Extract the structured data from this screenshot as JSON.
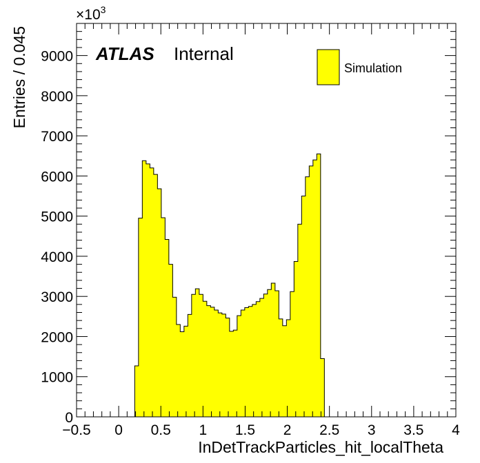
{
  "chart_data": {
    "type": "bar",
    "title": "",
    "xlabel": "InDetTrackParticles_hit_localTheta",
    "ylabel": "Entries / 0.045",
    "xlim": [
      -0.5,
      4.0
    ],
    "ylim": [
      0,
      9800
    ],
    "y_multiplier": "×10",
    "y_multiplier_exponent": "3",
    "x_ticks": [
      -0.5,
      0,
      0.5,
      1,
      1.5,
      2,
      2.5,
      3,
      3.5,
      4
    ],
    "x_tick_labels": [
      "−0.5",
      "0",
      "0.5",
      "1",
      "1.5",
      "2",
      "2.5",
      "3",
      "3.5",
      "4"
    ],
    "y_ticks": [
      0,
      1000,
      2000,
      3000,
      4000,
      5000,
      6000,
      7000,
      8000,
      9000
    ],
    "y_tick_labels": [
      "0",
      "1000",
      "2000",
      "3000",
      "4000",
      "5000",
      "6000",
      "7000",
      "8000",
      "9000"
    ],
    "bin_width": 0.045,
    "bin_start": 0.19,
    "series": [
      {
        "name": "Simulation",
        "color": "#ffff00",
        "values": [
          1270,
          4950,
          6380,
          6300,
          6200,
          6040,
          5680,
          4960,
          4420,
          3800,
          2980,
          2300,
          2120,
          2260,
          2550,
          3050,
          3190,
          3050,
          2880,
          2770,
          2730,
          2660,
          2590,
          2560,
          2460,
          2130,
          2160,
          2520,
          2660,
          2720,
          2750,
          2800,
          2870,
          2950,
          3060,
          3170,
          3330,
          3140,
          2440,
          2270,
          2420,
          3120,
          3870,
          4800,
          5500,
          5980,
          6250,
          6400,
          6550,
          1450
        ]
      }
    ],
    "legend_placement": "top-right",
    "grid": false
  },
  "annotation": {
    "atlas": "ATLAS",
    "internal": "Internal"
  },
  "legend": {
    "label": "Simulation"
  }
}
